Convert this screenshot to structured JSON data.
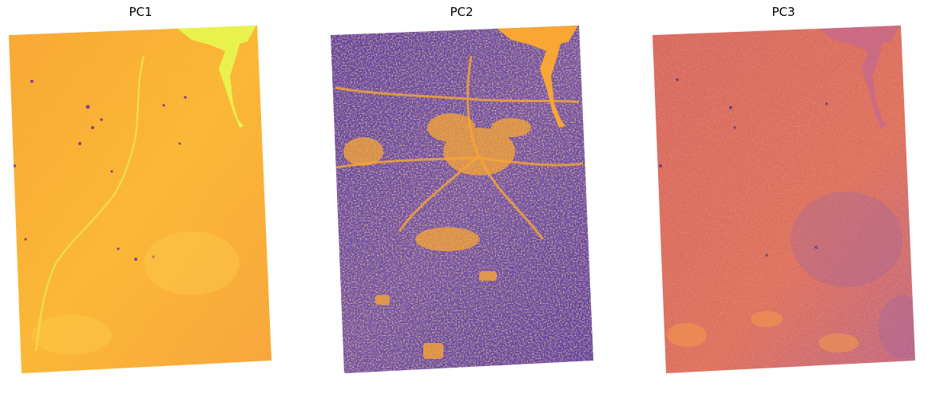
{
  "figure": {
    "panels": [
      {
        "title": "PC1",
        "colormap": "plasma",
        "dominant_color": "#f9b033",
        "water_color": "#e9f24d",
        "dark_spot_color": "#6a2a9a"
      },
      {
        "title": "PC2",
        "colormap": "plasma",
        "dominant_color": "#6a4aa8",
        "water_color": "#f8a634",
        "dark_spot_color": "#3c2a96"
      },
      {
        "title": "PC3",
        "colormap": "plasma",
        "dominant_color": "#dd6e5e",
        "water_color": "#c86a8a",
        "dark_spot_color": "#4a3090"
      }
    ]
  }
}
